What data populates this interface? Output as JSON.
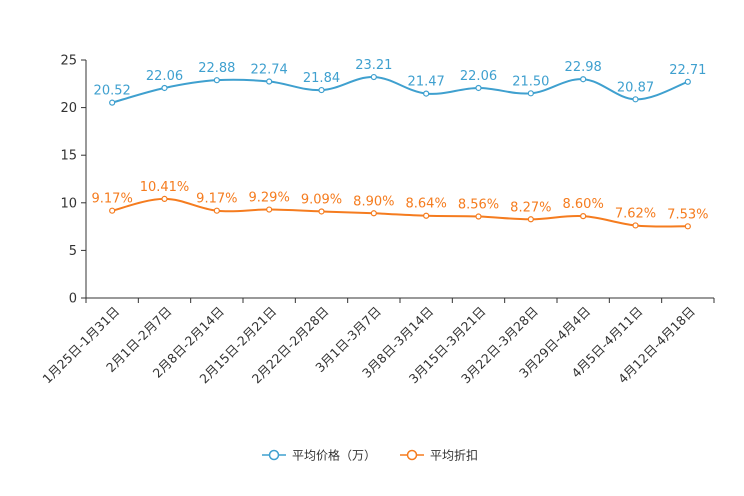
{
  "chart_data": {
    "type": "line",
    "categories": [
      "1月25日-1月31日",
      "2月1日-2月7日",
      "2月8日-2月14日",
      "2月15日-2月21日",
      "2月22日-2月28日",
      "3月1日-3月7日",
      "3月8日-3月14日",
      "3月15日-3月21日",
      "3月22日-3月28日",
      "3月29日-4月4日",
      "4月5日-4月11日",
      "4月12日-4月18日"
    ],
    "series": [
      {
        "name": "平均价格（万）",
        "color": "#3fa0cf",
        "values": [
          20.52,
          22.06,
          22.88,
          22.74,
          21.84,
          23.21,
          21.47,
          22.06,
          21.5,
          22.98,
          20.87,
          22.71
        ],
        "labels": [
          "20.52",
          "22.06",
          "22.88",
          "22.74",
          "21.84",
          "23.21",
          "21.47",
          "22.06",
          "21.50",
          "22.98",
          "20.87",
          "22.71"
        ]
      },
      {
        "name": "平均折扣",
        "color": "#f57c1f",
        "values": [
          9.17,
          10.41,
          9.17,
          9.29,
          9.09,
          8.9,
          8.64,
          8.56,
          8.27,
          8.6,
          7.62,
          7.53
        ],
        "labels": [
          "9.17%",
          "10.41%",
          "9.17%",
          "9.29%",
          "9.09%",
          "8.90%",
          "8.64%",
          "8.56%",
          "8.27%",
          "8.60%",
          "7.62%",
          "7.53%"
        ]
      }
    ],
    "yticks": [
      "0",
      "5",
      "10",
      "15",
      "20",
      "25"
    ],
    "ylim": [
      0,
      25
    ],
    "title": "",
    "xlabel": "",
    "ylabel": "",
    "grid": false,
    "legend_position": "bottom-center"
  }
}
